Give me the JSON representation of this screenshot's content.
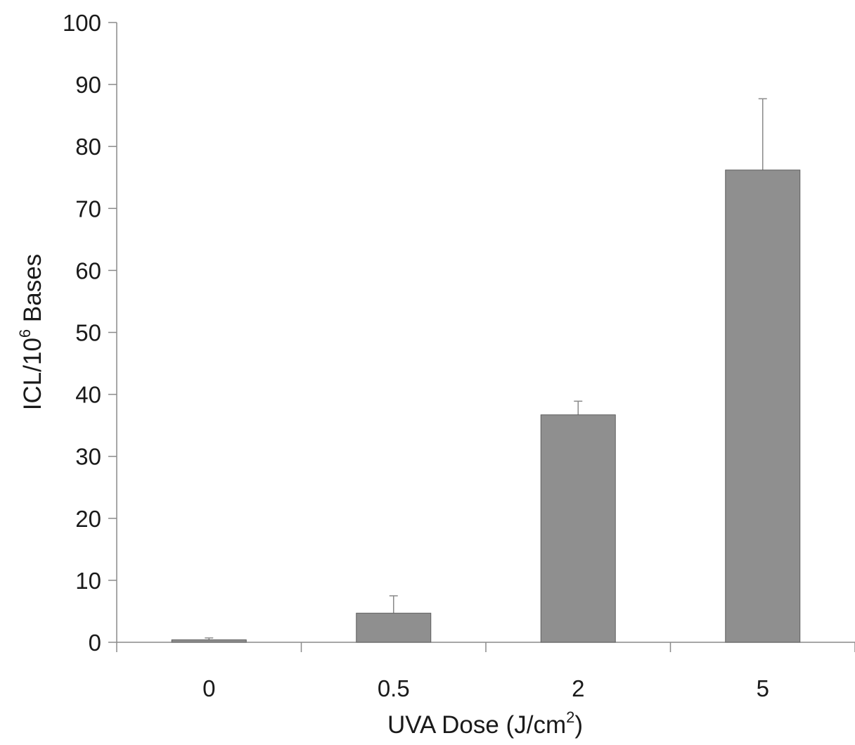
{
  "chart_data": {
    "type": "bar",
    "categories": [
      "0",
      "0.5",
      "2",
      "5"
    ],
    "values": [
      0.4,
      4.7,
      36.7,
      76.2
    ],
    "error_bars": [
      0.3,
      2.8,
      2.2,
      11.5
    ],
    "xlabel": {
      "prefix": "UVA Dose (J/cm",
      "superscript": "2",
      "suffix": ")"
    },
    "ylabel": {
      "prefix": "ICL/10",
      "superscript": "6",
      "suffix": " Bases"
    },
    "ylim": [
      0,
      100
    ],
    "yticks": [
      "0",
      "10",
      "20",
      "30",
      "40",
      "50",
      "60",
      "70",
      "80",
      "90",
      "100"
    ],
    "grid": false,
    "legend": "none",
    "colors": {
      "bar": "#8f8f8f",
      "bar_edge": "#5f5f5f",
      "axis": "#8a8a8a",
      "error_bar": "#8a8a8a",
      "text": "#1a1a1a"
    }
  }
}
